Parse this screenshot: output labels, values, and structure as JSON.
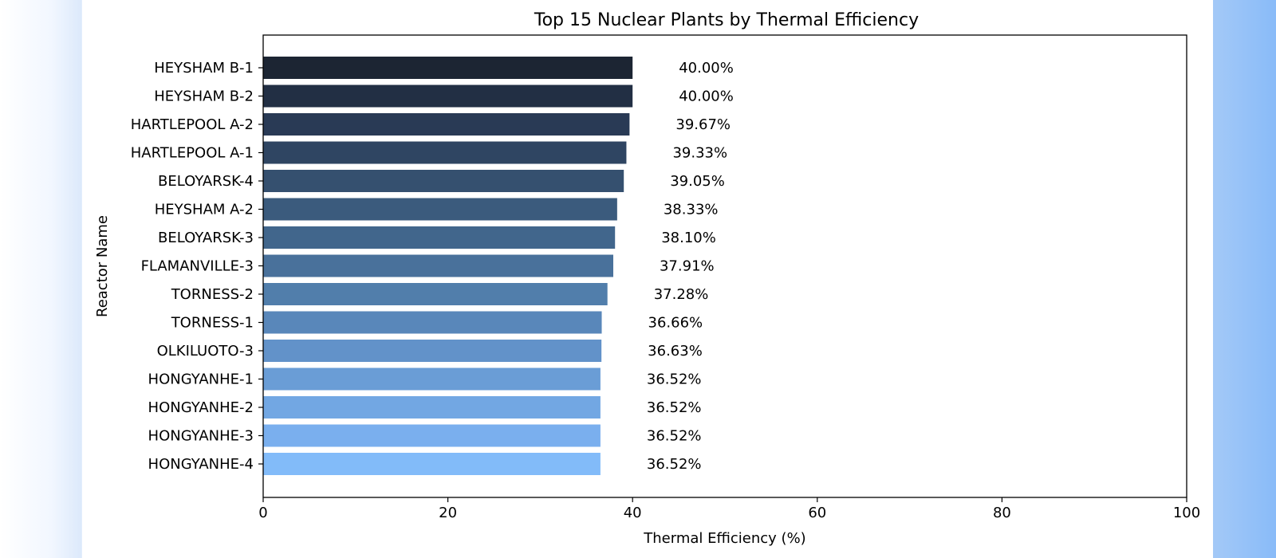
{
  "chart_data": {
    "type": "bar",
    "orientation": "horizontal",
    "title": "Top 15 Nuclear Plants by Thermal Efficiency",
    "xlabel": "Thermal Efficiency (%)",
    "ylabel": "Reactor Name",
    "xlim": [
      0,
      100
    ],
    "xticks": [
      0,
      20,
      40,
      60,
      80,
      100
    ],
    "grid": false,
    "categories": [
      "HEYSHAM B-1",
      "HEYSHAM B-2",
      "HARTLEPOOL A-2",
      "HARTLEPOOL A-1",
      "BELOYARSK-4",
      "HEYSHAM A-2",
      "BELOYARSK-3",
      "FLAMANVILLE-3",
      "TORNESS-2",
      "TORNESS-1",
      "OLKILUOTO-3",
      "HONGYANHE-1",
      "HONGYANHE-2",
      "HONGYANHE-3",
      "HONGYANHE-4"
    ],
    "values": [
      40.0,
      40.0,
      39.67,
      39.33,
      39.05,
      38.33,
      38.1,
      37.91,
      37.28,
      36.66,
      36.63,
      36.52,
      36.52,
      36.52,
      36.52
    ],
    "value_labels": [
      "40.00%",
      "40.00%",
      "39.67%",
      "39.33%",
      "39.05%",
      "38.33%",
      "38.10%",
      "37.91%",
      "37.28%",
      "36.66%",
      "36.63%",
      "36.52%",
      "36.52%",
      "36.52%",
      "36.52%"
    ],
    "bar_colors": [
      "#1c2533",
      "#222f44",
      "#293a55",
      "#2f4562",
      "#35506f",
      "#3b5b7d",
      "#41668c",
      "#49719b",
      "#517eab",
      "#5987ba",
      "#6292c9",
      "#6a9dd6",
      "#72a7e3",
      "#7aafee",
      "#82bbf9"
    ]
  }
}
